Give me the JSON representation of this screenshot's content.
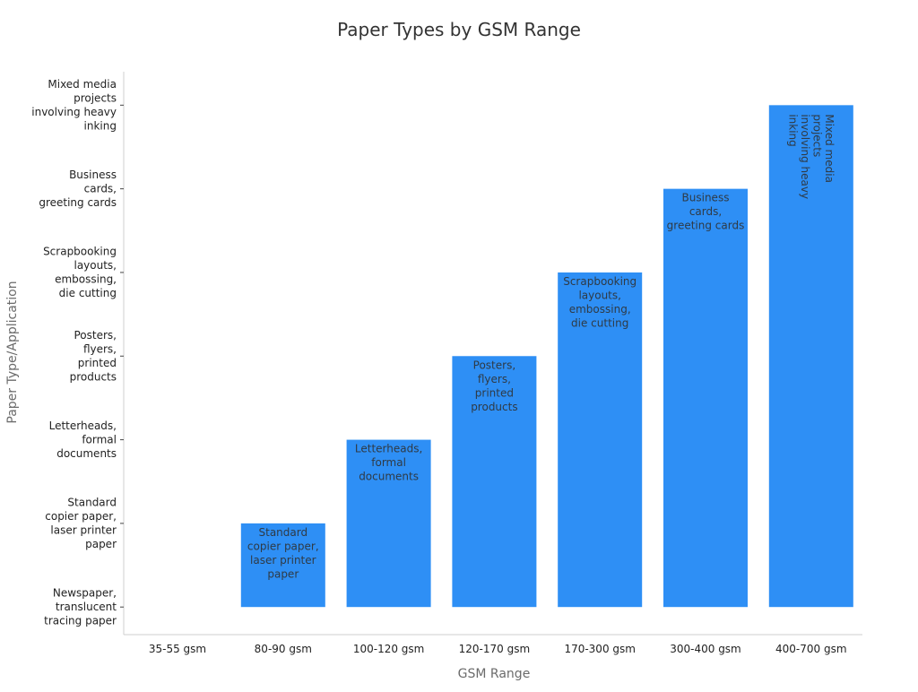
{
  "chart_data": {
    "type": "bar",
    "title": "Paper Types by GSM Range",
    "xlabel": "GSM Range",
    "ylabel": "Paper Type/Application",
    "categories": [
      "35-55 gsm",
      "80-90 gsm",
      "100-120 gsm",
      "120-170 gsm",
      "170-300 gsm",
      "300-400 gsm",
      "400-700 gsm"
    ],
    "y_categories": [
      "Newspaper, translucent tracing paper",
      "Standard copier paper, laser printer paper",
      "Letterheads, formal documents",
      "Posters, flyers, printed products",
      "Scrapbooking layouts, embossing, die cutting",
      "Business cards, greeting cards",
      "Mixed media projects involving heavy inking"
    ],
    "y_tick_lines": [
      [
        "Newspaper,",
        "translucent",
        "tracing paper"
      ],
      [
        "Standard",
        "copier paper,",
        "laser printer",
        "paper"
      ],
      [
        "Letterheads,",
        "formal",
        "documents"
      ],
      [
        "Posters,",
        "flyers,",
        "printed",
        "products"
      ],
      [
        "Scrapbooking",
        "layouts,",
        "embossing,",
        "die cutting"
      ],
      [
        "Business",
        "cards,",
        "greeting cards"
      ],
      [
        "Mixed media",
        "projects",
        "involving heavy",
        "inking"
      ]
    ],
    "values": [
      0,
      1,
      2,
      3,
      4,
      5,
      6
    ],
    "ylim": [
      -0.33,
      6.4
    ],
    "bar_color": "#2e8ff5",
    "grid": false,
    "legend": "none",
    "data_labels": [
      [],
      [
        "Standard",
        "copier paper,",
        "laser printer",
        "paper"
      ],
      [
        "Letterheads,",
        "formal",
        "documents"
      ],
      [
        "Posters,",
        "flyers,",
        "printed",
        "products"
      ],
      [
        "Scrapbooking",
        "layouts,",
        "embossing,",
        "die cutting"
      ],
      [
        "Business",
        "cards,",
        "greeting cards"
      ],
      [
        "Mixed media",
        "projects",
        "involving heavy",
        "inking"
      ]
    ],
    "rotated_labels": [
      false,
      false,
      false,
      false,
      false,
      false,
      true
    ]
  }
}
